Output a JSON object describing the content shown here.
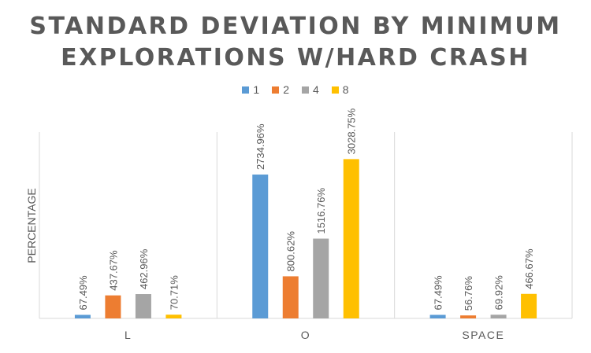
{
  "chart_data": {
    "type": "bar",
    "title_line1": "STANDARD DEVIATION BY MINIMUM",
    "title_line2": "EXPLORATIONS W/HARD CRASH",
    "ylabel": "PERCENTAGE",
    "xlabel": "",
    "categories": [
      "L",
      "O",
      "SPACE"
    ],
    "series": [
      {
        "name": "1",
        "color": "#5B9BD5",
        "values": [
          67.49,
          2734.96,
          67.49
        ],
        "labels": [
          "67.49%",
          "2734.96%",
          "67.49%"
        ]
      },
      {
        "name": "2",
        "color": "#ED7D31",
        "values": [
          437.67,
          800.62,
          56.76
        ],
        "labels": [
          "437.67%",
          "800.62%",
          "56.76%"
        ]
      },
      {
        "name": "4",
        "color": "#A5A5A5",
        "values": [
          462.96,
          1516.76,
          69.92
        ],
        "labels": [
          "462.96%",
          "1516.76%",
          "69.92%"
        ]
      },
      {
        "name": "8",
        "color": "#FFC000",
        "values": [
          70.71,
          3028.75,
          466.67
        ],
        "labels": [
          "70.71%",
          "3028.75%",
          "466.67%"
        ]
      }
    ],
    "ylim": [
      0,
      3300
    ],
    "grid": false,
    "legend_position": "top"
  }
}
